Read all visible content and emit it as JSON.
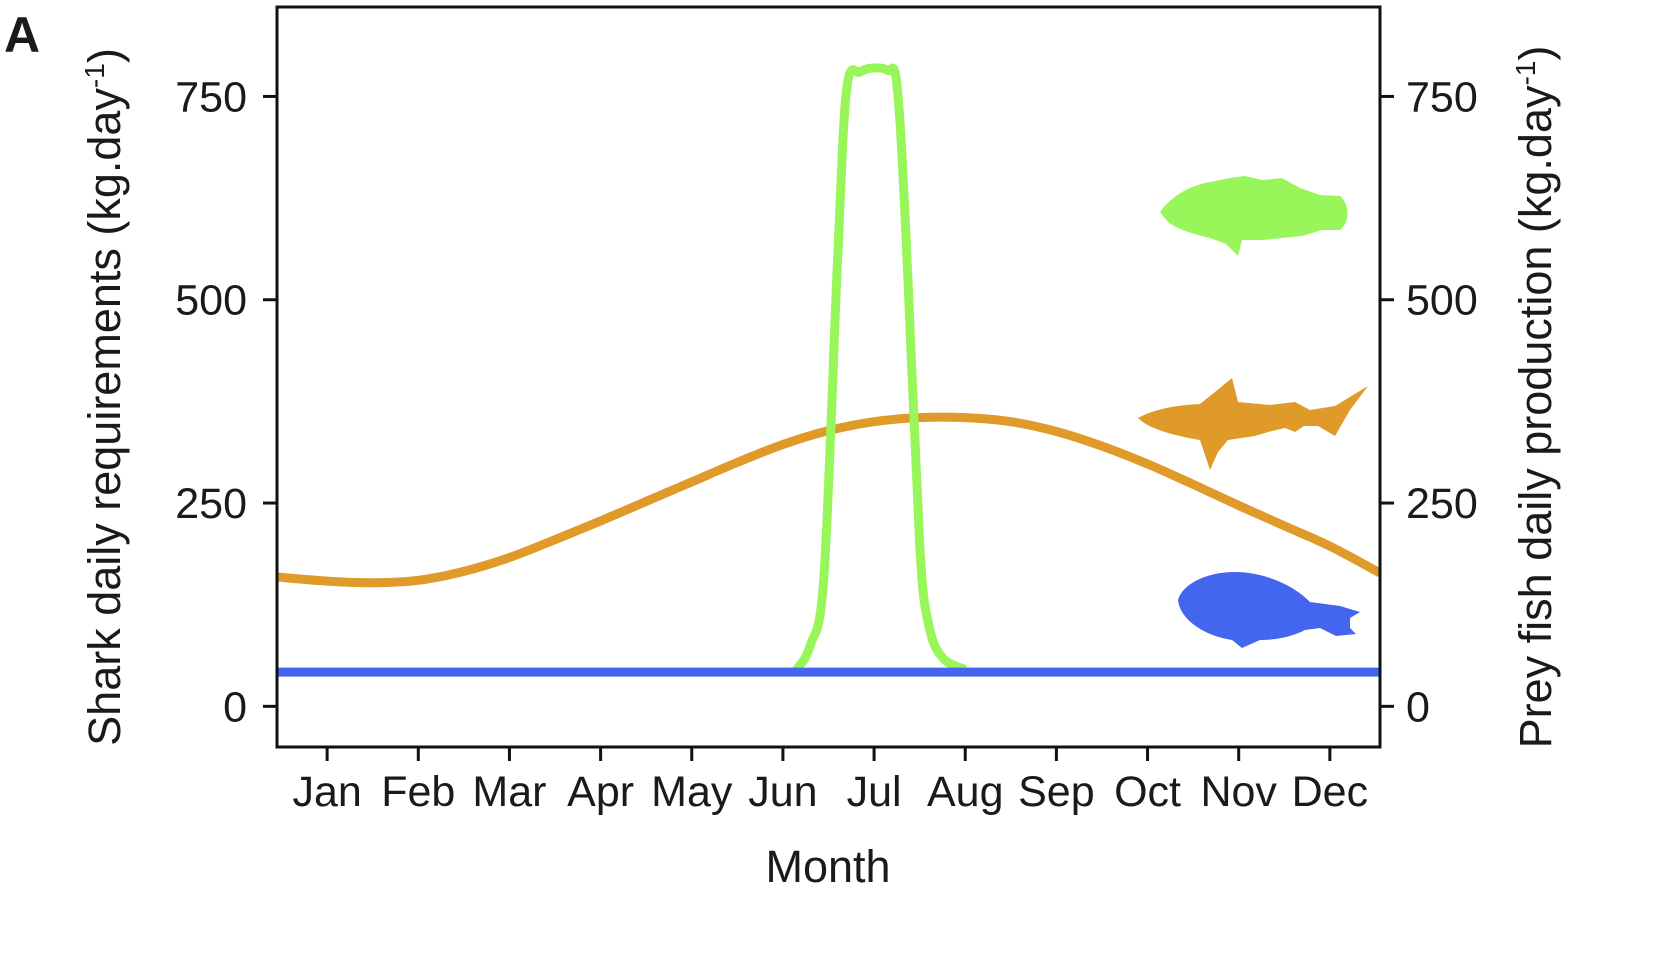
{
  "panel_label": "A",
  "chart_data": {
    "type": "line",
    "xlabel": "Month",
    "ylabel_left": "Shark daily requirements (kg.day",
    "ylabel_right": "Prey fish daily production (kg.day",
    "ylabel_superscript": "-1",
    "x_ticks": [
      "Jan",
      "Feb",
      "Mar",
      "Apr",
      "May",
      "Jun",
      "Jul",
      "Aug",
      "Sep",
      "Oct",
      "Nov",
      "Dec"
    ],
    "y_ticks": [
      0,
      250,
      500,
      750
    ],
    "xlim": [
      0.45,
      12.55
    ],
    "ylim": [
      -50,
      860
    ],
    "grid": false,
    "series": [
      {
        "axis": "left",
        "color": "#E09A2A",
        "icon": "shark-icon",
        "x": [
          0.45,
          1,
          1.5,
          2,
          2.5,
          3,
          3.5,
          4,
          4.5,
          5,
          5.5,
          6,
          6.5,
          7,
          7.5,
          8,
          8.5,
          9,
          9.5,
          10,
          10.5,
          11,
          11.5,
          12,
          12.55
        ],
        "y": [
          159,
          154,
          152,
          155,
          166,
          183,
          205,
          228,
          252,
          276,
          300,
          322,
          339,
          350,
          355,
          355,
          350,
          338,
          320,
          298,
          273,
          247,
          222,
          197,
          164
        ]
      },
      {
        "axis": "right",
        "color": "#99F65A",
        "icon": "grouper-icon",
        "x": [
          6.15,
          6.3,
          6.45,
          6.6,
          6.7,
          6.85,
          7.0,
          7.15,
          7.25,
          7.35,
          7.5,
          7.6,
          7.75,
          8.0
        ],
        "y": [
          45,
          75,
          160,
          550,
          760,
          780,
          785,
          782,
          765,
          580,
          200,
          100,
          60,
          45
        ]
      },
      {
        "axis": "right",
        "color": "#4466EE",
        "icon": "parrotfish-icon",
        "x": [
          0.45,
          12.55
        ],
        "y": [
          42,
          42
        ]
      }
    ]
  }
}
